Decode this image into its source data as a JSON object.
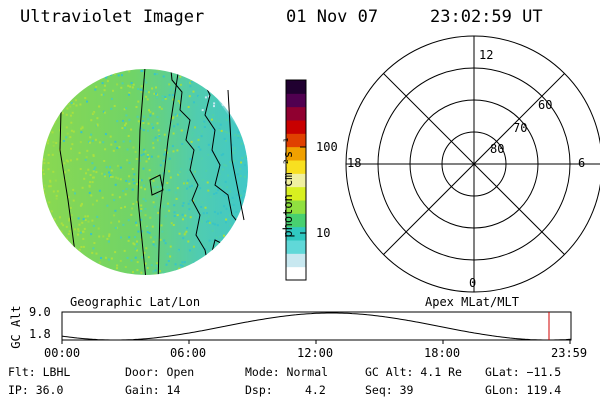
{
  "header": {
    "instrument": "Ultraviolet Imager",
    "date": "01 Nov 07",
    "time": "23:02:59 UT"
  },
  "colorbar": {
    "unit_label": "photon cm⁻²s⁻¹",
    "ticks": [
      {
        "label": "100",
        "value": 100
      },
      {
        "label": "10",
        "value": 10
      }
    ],
    "colors": [
      "#ffffff",
      "#c8e8f0",
      "#60d8d8",
      "#30c8c0",
      "#48d070",
      "#90e040",
      "#d8f020",
      "#f0f0a0",
      "#f8e020",
      "#f0a000",
      "#e04000",
      "#c80000",
      "#900030",
      "#500050",
      "#200030"
    ]
  },
  "image_panel": {
    "dominant_color": "#7cd860",
    "secondary_color": "#3cc8c0",
    "terminator_color": "#c8e8f8"
  },
  "polar_plot": {
    "mlt_labels": [
      {
        "label": "12",
        "position": "top"
      },
      {
        "label": "6",
        "position": "right"
      },
      {
        "label": "0",
        "position": "bottom"
      },
      {
        "label": "18",
        "position": "left"
      }
    ],
    "lat_labels": [
      "60",
      "70",
      "80"
    ]
  },
  "panel_labels": {
    "left": "Geographic Lat/Lon",
    "right": "Apex MLat/MLT"
  },
  "altitude_plot": {
    "ylabel": "GC Alt",
    "yticks": [
      "9.0",
      "1.8"
    ],
    "xticks": [
      "00:00",
      "06:00",
      "12:00",
      "18:00",
      "23:59"
    ],
    "marker_color": "#d00000"
  },
  "info": {
    "filter": "Flt: LBHL",
    "door": "Door: Open",
    "mode": "Mode: Normal",
    "gc_alt": "GC Alt: 4.1 Re",
    "glat": "GLat: −11.5",
    "ip": "IP: 36.0",
    "gain": "Gain: 14",
    "dsp_label": "Dsp:",
    "dsp_value": "4.2",
    "seq": "Seq: 39",
    "glon": "GLon: 119.4"
  }
}
